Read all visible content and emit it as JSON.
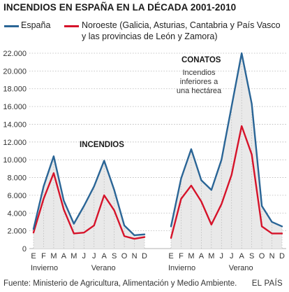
{
  "title": "INCENDIOS EN ESPAÑA EN LA DÉCADA 2001-2010",
  "legend": {
    "series1": "España",
    "series2_line1": "Noroeste (Galicia, Asturias, Cantabria y País Vasco",
    "series2_line2": "y las provincias de León y Zamora)"
  },
  "footer": {
    "source": "Fuente: Ministerio de Agricultura, Alimentación y Medio Ambiente.",
    "brand": "EL PAÍS"
  },
  "colors": {
    "espana": "#2a6596",
    "noroeste": "#d6132a",
    "fill": "#e9e9e9",
    "grid": "#b5b5b5"
  },
  "chart_data": [
    {
      "type": "area",
      "panel_label": "INCENDIOS",
      "categories": [
        "E",
        "F",
        "M",
        "A",
        "M",
        "J",
        "J",
        "A",
        "S",
        "O",
        "N",
        "D"
      ],
      "season_labels": [
        {
          "text": "Invierno",
          "category_index": 0
        },
        {
          "text": "Verano",
          "category_index": 6
        }
      ],
      "yticks": [
        0,
        2000,
        4000,
        6000,
        8000,
        10000,
        12000,
        14000,
        16000,
        18000,
        20000,
        22000
      ],
      "ytick_labels": [
        "0",
        "2.000",
        "4.000",
        "6.000",
        "8.000",
        "10.000",
        "12.000",
        "14.000",
        "16.000",
        "18.000",
        "20.000",
        "22.000"
      ],
      "ylim": [
        0,
        22000
      ],
      "series": [
        {
          "name": "España",
          "color": "#2a6596",
          "values": [
            2200,
            7000,
            10400,
            5400,
            2800,
            4800,
            7000,
            9900,
            6600,
            2600,
            1500,
            1600
          ]
        },
        {
          "name": "Noroeste (Galicia, Asturias, Cantabria y País Vasco y las provincias de León y Zamora)",
          "color": "#d6132a",
          "values": [
            1800,
            5600,
            8500,
            4400,
            1700,
            1800,
            2600,
            6000,
            4300,
            1400,
            1100,
            1300
          ]
        }
      ]
    },
    {
      "type": "area",
      "panel_label": "CONATOS",
      "annotation": [
        "Incendios",
        "inferiores a",
        "una hectárea"
      ],
      "categories": [
        "E",
        "F",
        "M",
        "A",
        "M",
        "J",
        "J",
        "A",
        "S",
        "O",
        "N",
        "D"
      ],
      "season_labels": [
        {
          "text": "Invierno",
          "category_index": 0
        },
        {
          "text": "Verano",
          "category_index": 6
        }
      ],
      "ylim": [
        0,
        22000
      ],
      "series": [
        {
          "name": "España",
          "color": "#2a6596",
          "values": [
            2500,
            7900,
            11200,
            7700,
            6600,
            10000,
            16000,
            22000,
            16300,
            4800,
            3000,
            2500
          ]
        },
        {
          "name": "Noroeste (Galicia, Asturias, Cantabria y País Vasco y las provincias de León y Zamora)",
          "color": "#d6132a",
          "values": [
            1200,
            5600,
            7100,
            5300,
            2700,
            5000,
            8300,
            13800,
            10600,
            2500,
            1700,
            1700
          ]
        }
      ]
    }
  ]
}
